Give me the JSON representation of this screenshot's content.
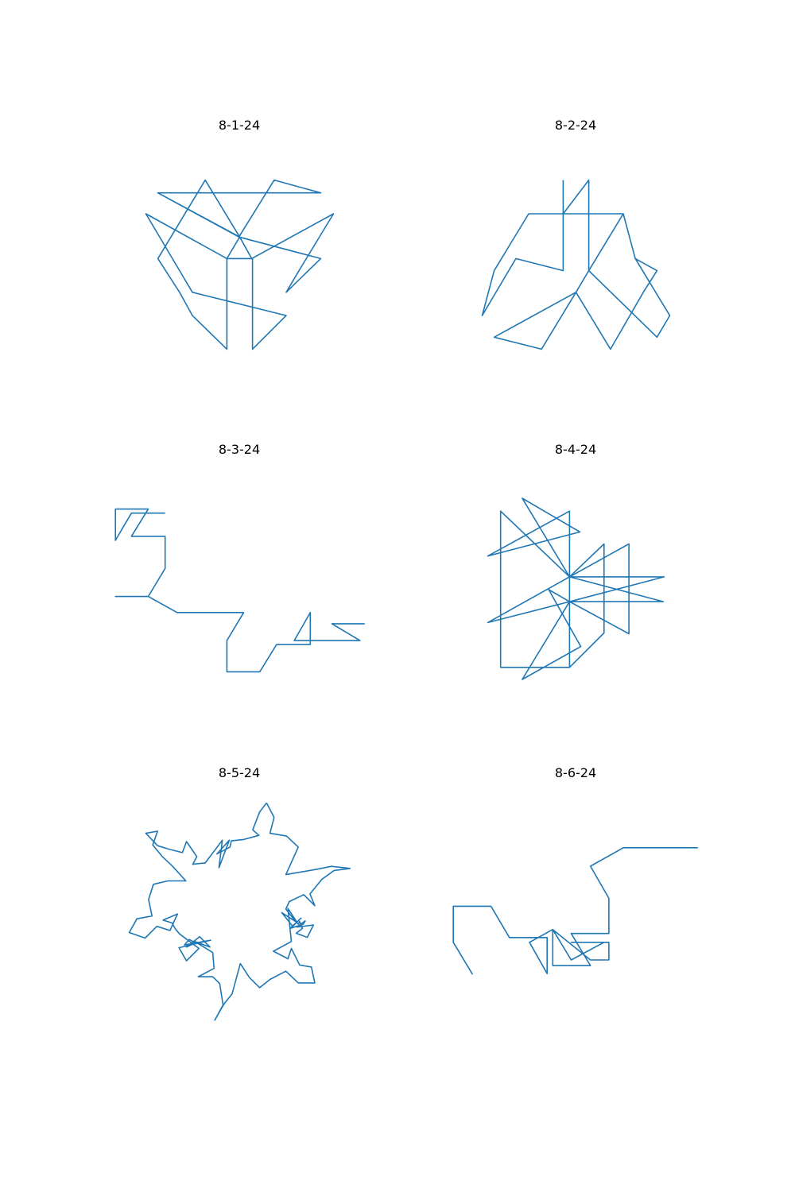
{
  "figure": {
    "background": "#ffffff"
  },
  "chart_data": [
    {
      "type": "line",
      "title": "8-1-24",
      "color": "#1f77b4",
      "axes_visible": false,
      "xlim": [
        126,
        475
      ],
      "ylim": [
        -465,
        -233
      ],
      "x": [
        199,
        301,
        258,
        199,
        226,
        242,
        285,
        285,
        317,
        317,
        359,
        242,
        226,
        184,
        285,
        301,
        316,
        418,
        375,
        359,
        402,
        402,
        300,
        344,
        402,
        199,
        300
      ],
      "y": [
        -260,
        -315,
        -244,
        -342,
        -384,
        -413,
        -455,
        -342,
        -342,
        -455,
        -413,
        -384,
        -357,
        -286,
        -342,
        -315,
        -342,
        -286,
        -357,
        -384,
        -342,
        -342,
        -315,
        -244,
        -260,
        -260,
        -315
      ]
    },
    {
      "type": "line",
      "title": "8-2-24",
      "color": "#1f77b4",
      "axes_visible": false,
      "xlim": [
        549,
        898
      ],
      "ylim": [
        -465,
        -233
      ],
      "x": [
        708,
        708,
        649,
        607,
        622,
        665,
        708,
        740,
        740,
        783,
        798,
        825,
        808,
        767,
        724,
        681,
        622,
        724,
        740,
        825,
        841,
        798,
        783,
        665,
        708
      ],
      "y": [
        -244,
        -357,
        -342,
        -413,
        -357,
        -286,
        -286,
        -244,
        -357,
        -286,
        -342,
        -357,
        -384,
        -455,
        -384,
        -455,
        -440,
        -384,
        -357,
        -440,
        -413,
        -342,
        -286,
        -286,
        -286
      ]
    },
    {
      "type": "line",
      "title": "8-3-24",
      "color": "#1f77b4",
      "axes_visible": false,
      "xlim": [
        126,
        475
      ],
      "ylim": [
        -870,
        -640
      ],
      "x": [
        208,
        166,
        146,
        146,
        187,
        166,
        208,
        208,
        187,
        146,
        187,
        223,
        306,
        285,
        285,
        326,
        347,
        389,
        389,
        369,
        451,
        416,
        457
      ],
      "y": [
        -661,
        -661,
        -695,
        -656,
        -656,
        -690,
        -690,
        -730,
        -765,
        -765,
        -765,
        -785,
        -785,
        -820,
        -859,
        -859,
        -825,
        -825,
        -785,
        -820,
        -820,
        -799,
        -799
      ]
    },
    {
      "type": "line",
      "title": "8-4-24",
      "color": "#1f77b4",
      "axes_visible": false,
      "xlim": [
        549,
        898
      ],
      "ylim": [
        -880,
        -633
      ],
      "x": [
        716,
        630,
        630,
        716,
        759,
        759,
        716,
        790,
        790,
        716,
        614,
        716,
        833,
        716,
        657,
        730,
        690,
        716,
        834,
        716,
        657,
        729,
        614,
        716,
        716,
        630
      ],
      "y": [
        -742,
        -660,
        -855,
        -855,
        -812,
        -701,
        -742,
        -701,
        -813,
        -773,
        -799,
        -742,
        -773,
        -773,
        -870,
        -829,
        -758,
        -773,
        -742,
        -742,
        -644,
        -686,
        -716,
        -660,
        -855,
        -855
      ]
    },
    {
      "type": "line",
      "title": "8-5-24",
      "color": "#1f77b4",
      "axes_visible": false,
      "xlim": [
        126,
        475
      ],
      "ylim": [
        -1335,
        -995
      ],
      "x": [
        340,
        351,
        345,
        369,
        386,
        368,
        414,
        434,
        461,
        438,
        420,
        403,
        410,
        394,
        373,
        368,
        382,
        362,
        378,
        390,
        374,
        393,
        396,
        384,
        408,
        399,
        383,
        392,
        388,
        386,
        371,
        376,
        350,
        371,
        376,
        388,
        405,
        410,
        386,
        368,
        345,
        330,
        315,
        302,
        290,
        278,
        265,
        277,
        272,
        262,
        241,
        264,
        262,
        236,
        258,
        243,
        224,
        237,
        228,
        221,
        259,
        213,
        224,
        242,
        214,
        208,
        203,
        190,
        211,
        200,
        181,
        164,
        141,
        152,
        174,
        169,
        176,
        197,
        223,
        203,
        189,
        175,
        182,
        165,
        182,
        198,
        218,
        224,
        239,
        233,
        251,
        276,
        271,
        286,
        268,
        287,
        289,
        307,
        329,
        320,
        330,
        340
      ],
      "y": [
        -1007,
        -1028,
        -1051,
        -1055,
        -1071,
        -1111,
        -1103,
        -1099,
        -1102,
        -1105,
        -1118,
        -1139,
        -1156,
        -1140,
        -1150,
        -1161,
        -1179,
        -1166,
        -1186,
        -1174,
        -1189,
        -1183,
        -1178,
        -1187,
        -1184,
        -1202,
        -1196,
        -1189,
        -1179,
        -1183,
        -1160,
        -1208,
        -1222,
        -1233,
        -1218,
        -1242,
        -1245,
        -1268,
        -1268,
        -1251,
        -1263,
        -1275,
        -1260,
        -1240,
        -1284,
        -1299,
        -1322,
        -1300,
        -1269,
        -1259,
        -1259,
        -1247,
        -1224,
        -1208,
        -1216,
        -1201,
        -1216,
        -1210,
        -1205,
        -1213,
        -1206,
        -1217,
        -1236,
        -1218,
        -1197,
        -1190,
        -1181,
        -1177,
        -1168,
        -1192,
        -1186,
        -1203,
        -1195,
        -1175,
        -1171,
        -1147,
        -1125,
        -1120,
        -1120,
        -1098,
        -1085,
        -1068,
        -1048,
        -1051,
        -1069,
        -1074,
        -1079,
        -1063,
        -1085,
        -1096,
        -1094,
        -1061,
        -1101,
        -1061,
        -1081,
        -1071,
        -1062,
        -1060,
        -1054,
        -1046,
        -1020,
        -1007
      ]
    },
    {
      "type": "line",
      "title": "8-6-24",
      "color": "#1f77b4",
      "axes_visible": false,
      "xlim": [
        549,
        898
      ],
      "ylim": [
        -1255,
        -1077
      ],
      "x": [
        876,
        783,
        742,
        765,
        765,
        718,
        742,
        695,
        695,
        718,
        759,
        718,
        765,
        765,
        742,
        695,
        666,
        688,
        688,
        641,
        618,
        571,
        571,
        595
      ],
      "y": [
        -1086,
        -1086,
        -1109,
        -1149,
        -1193,
        -1193,
        -1233,
        -1233,
        -1188,
        -1226,
        -1204,
        -1204,
        -1204,
        -1226,
        -1226,
        -1188,
        -1204,
        -1243,
        -1198,
        -1198,
        -1159,
        -1159,
        -1204,
        -1244
      ]
    }
  ]
}
